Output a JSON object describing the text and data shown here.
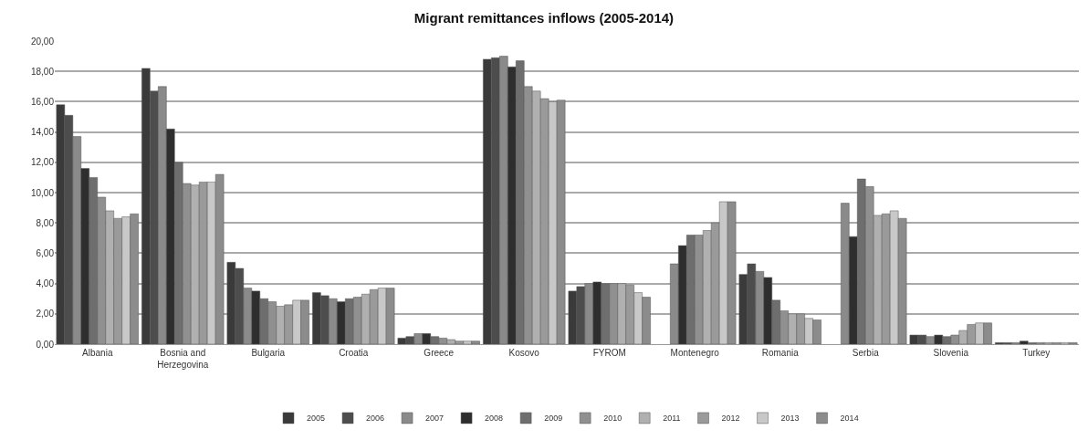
{
  "chart_data": {
    "type": "bar",
    "title": "Migrant remittances inflows (2005-2014)",
    "categories": [
      "Albania",
      "Bosnia and Herzegovina",
      "Bulgaria",
      "Croatia",
      "Greece",
      "Kosovo",
      "FYROM",
      "Montenegro",
      "Romania",
      "Serbia",
      "Slovenia",
      "Turkey"
    ],
    "series": [
      {
        "name": "2005",
        "color": "#3a3a3a",
        "values": [
          15.8,
          18.2,
          5.4,
          3.4,
          0.4,
          18.8,
          3.5,
          null,
          4.6,
          null,
          0.6,
          0.1
        ]
      },
      {
        "name": "2006",
        "color": "#4d4d4d",
        "values": [
          15.1,
          16.7,
          5.0,
          3.2,
          0.5,
          18.9,
          3.8,
          null,
          5.3,
          null,
          0.6,
          0.1
        ]
      },
      {
        "name": "2007",
        "color": "#8a8a8a",
        "values": [
          13.7,
          17.0,
          3.7,
          3.0,
          0.7,
          19.0,
          4.0,
          5.3,
          4.8,
          9.3,
          0.5,
          0.1
        ]
      },
      {
        "name": "2008",
        "color": "#2e2e2e",
        "values": [
          11.6,
          14.2,
          3.5,
          2.8,
          0.7,
          18.3,
          4.1,
          6.5,
          4.4,
          7.1,
          0.6,
          0.2
        ]
      },
      {
        "name": "2009",
        "color": "#6e6e6e",
        "values": [
          11.0,
          12.0,
          3.0,
          3.0,
          0.5,
          18.7,
          4.0,
          7.2,
          2.9,
          10.9,
          0.5,
          0.1
        ]
      },
      {
        "name": "2010",
        "color": "#909090",
        "values": [
          9.7,
          10.6,
          2.8,
          3.1,
          0.4,
          17.0,
          4.0,
          7.2,
          2.2,
          10.4,
          0.6,
          0.1
        ]
      },
      {
        "name": "2011",
        "color": "#b0b0b0",
        "values": [
          8.8,
          10.5,
          2.5,
          3.3,
          0.3,
          16.7,
          4.0,
          7.5,
          2.0,
          8.5,
          0.9,
          0.1
        ]
      },
      {
        "name": "2012",
        "color": "#9a9a9a",
        "values": [
          8.3,
          10.7,
          2.6,
          3.6,
          0.2,
          16.2,
          3.9,
          8.0,
          2.0,
          8.6,
          1.3,
          0.1
        ]
      },
      {
        "name": "2013",
        "color": "#c8c8c8",
        "values": [
          8.4,
          10.7,
          2.9,
          3.7,
          0.2,
          16.0,
          3.4,
          9.4,
          1.7,
          8.8,
          1.4,
          0.1
        ]
      },
      {
        "name": "2014",
        "color": "#8c8c8c",
        "values": [
          8.6,
          11.2,
          2.9,
          3.7,
          0.2,
          16.1,
          3.1,
          9.4,
          1.6,
          8.3,
          1.4,
          0.1
        ]
      }
    ],
    "ylim": [
      0,
      20
    ],
    "yticks": [
      {
        "value": 0,
        "label": "0,00"
      },
      {
        "value": 2,
        "label": "2,00"
      },
      {
        "value": 4,
        "label": "4,00"
      },
      {
        "value": 6,
        "label": "6,00"
      },
      {
        "value": 8,
        "label": "8,00"
      },
      {
        "value": 10,
        "label": "10,00"
      },
      {
        "value": 12,
        "label": "12,00"
      },
      {
        "value": 14,
        "label": "14,00"
      },
      {
        "value": 16,
        "label": "16,00"
      },
      {
        "value": 18,
        "label": "18,00"
      },
      {
        "value": 20,
        "label": "20,00"
      }
    ],
    "grid": "y",
    "legend": "bottom"
  }
}
